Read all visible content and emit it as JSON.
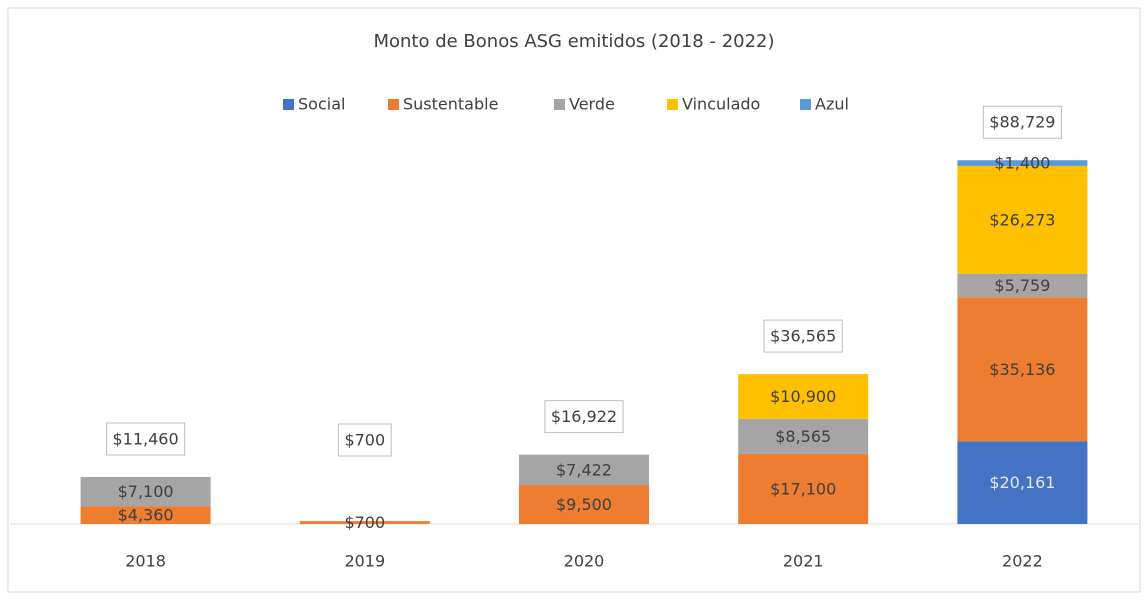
{
  "chart_data": {
    "type": "stacked_bar",
    "title": "Monto de Bonos ASG emitidos (2018 - 2022)",
    "categories": [
      "2018",
      "2019",
      "2020",
      "2021",
      "2022"
    ],
    "series": [
      {
        "name": "Social",
        "color": "#4472c4",
        "values": [
          null,
          null,
          null,
          null,
          20161
        ],
        "value_labels": [
          null,
          null,
          null,
          null,
          "$20,161"
        ]
      },
      {
        "name": "Sustentable",
        "color": "#ed7d31",
        "values": [
          4360,
          700,
          9500,
          17100,
          35136
        ],
        "value_labels": [
          "$4,360",
          "$700",
          "$9,500",
          "$17,100",
          "$35,136"
        ]
      },
      {
        "name": "Verde",
        "color": "#a5a5a5",
        "values": [
          7100,
          null,
          7422,
          8565,
          5759
        ],
        "value_labels": [
          "$7,100",
          null,
          "$7,422",
          "$8,565",
          "$5,759"
        ]
      },
      {
        "name": "Vinculado",
        "color": "#ffc000",
        "values": [
          null,
          null,
          null,
          10900,
          26273
        ],
        "value_labels": [
          null,
          null,
          null,
          "$10,900",
          "$26,273"
        ]
      },
      {
        "name": "Azul",
        "color": "#5b9bd5",
        "values": [
          null,
          null,
          null,
          null,
          1400
        ],
        "value_labels": [
          null,
          null,
          null,
          null,
          "$1,400"
        ]
      }
    ],
    "totals": [
      11460,
      700,
      16922,
      36565,
      88729
    ],
    "total_labels": [
      "$11,460",
      "$700",
      "$16,922",
      "$36,565",
      "$88,729"
    ],
    "ylim": [
      0,
      100000
    ],
    "legend": "top"
  }
}
